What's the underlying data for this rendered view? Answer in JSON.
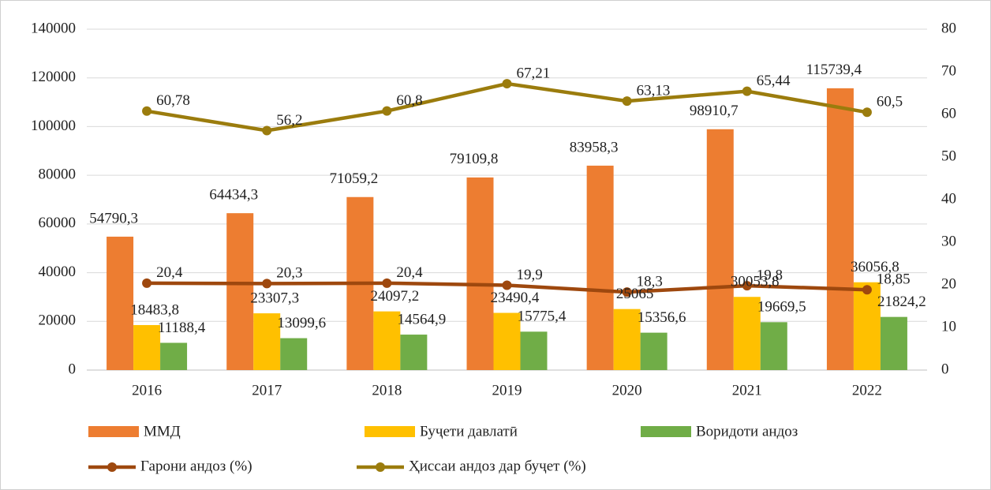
{
  "chart_data": {
    "type": "bar",
    "categories": [
      "2016",
      "2017",
      "2018",
      "2019",
      "2020",
      "2021",
      "2022"
    ],
    "series": [
      {
        "name": "ММД",
        "color": "#ed7d31",
        "values": [
          54790.3,
          64434.3,
          71059.2,
          79109.8,
          83958.3,
          98910.7,
          115739.4
        ],
        "value_labels": [
          "54790,3",
          "64434,3",
          "71059,2",
          "79109,8",
          "83958,3",
          "98910,7",
          "115739,4"
        ]
      },
      {
        "name": "Буҷети давлатӣ",
        "color": "#ffc000",
        "values": [
          18483.8,
          23307.3,
          24097.2,
          23490.4,
          25065,
          30053.8,
          36056.8
        ],
        "value_labels": [
          "18483,8",
          "23307,3",
          "24097,2",
          "23490,4",
          "25065",
          "30053,8",
          "36056,8"
        ]
      },
      {
        "name": "Воридоти андоз",
        "color": "#70ad47",
        "values": [
          11188.4,
          13099.6,
          14564.9,
          15775.4,
          15356.6,
          19669.5,
          21824.2
        ],
        "value_labels": [
          "11188,4",
          "13099,6",
          "14564,9",
          "15775,4",
          "15356,6",
          "19669,5",
          "21824,2"
        ]
      },
      {
        "name": "Гарони андоз (%)",
        "color": "#9e480e",
        "type": "line",
        "axis": "y2",
        "values": [
          20.4,
          20.3,
          20.4,
          19.9,
          18.3,
          19.8,
          18.85
        ],
        "value_labels": [
          "20,4",
          "20,3",
          "20,4",
          "19,9",
          "18,3",
          "19,8",
          "18,85"
        ]
      },
      {
        "name": "Ҳиссаи андоз дар буҷет (%)",
        "color": "#9b7c0d",
        "type": "line",
        "axis": "y2",
        "values": [
          60.78,
          56.2,
          60.8,
          67.21,
          63.13,
          65.44,
          60.5
        ],
        "value_labels": [
          "60,78",
          "56,2",
          "60,8",
          "67,21",
          "63,13",
          "65,44",
          "60,5"
        ]
      }
    ],
    "ylim": [
      0,
      140000
    ],
    "yticks": [
      0,
      20000,
      40000,
      60000,
      80000,
      100000,
      120000,
      140000
    ],
    "y2lim": [
      0,
      80
    ],
    "y2ticks": [
      0,
      10,
      20,
      30,
      40,
      50,
      60,
      70,
      80
    ],
    "grid": true,
    "legend": "bottom"
  }
}
